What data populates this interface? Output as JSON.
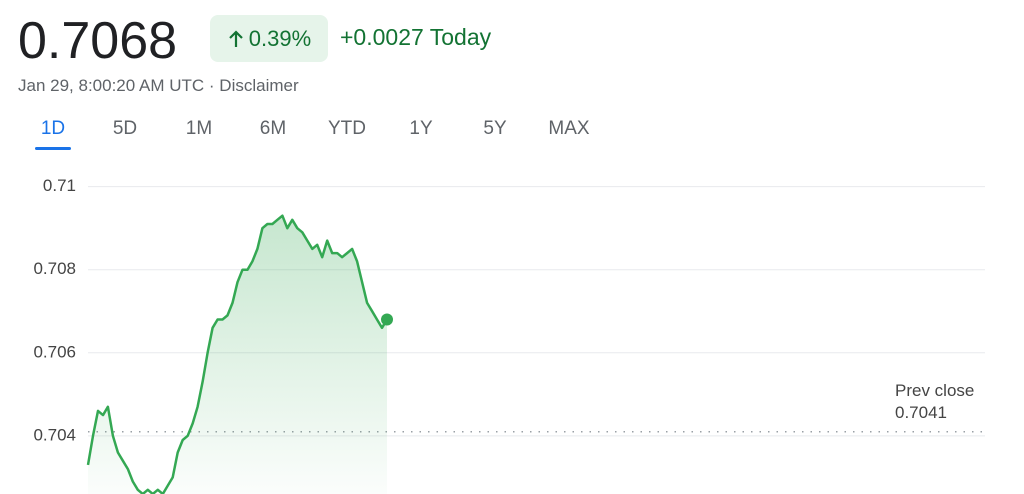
{
  "header": {
    "price": "0.7068",
    "change_percent": "0.39%",
    "change": "+0.0027 Today",
    "timestamp": "Jan 29, 8:00:20 AM UTC",
    "separator": "·",
    "disclaimer": "Disclaimer"
  },
  "tabs": [
    "1D",
    "5D",
    "1M",
    "6M",
    "YTD",
    "1Y",
    "5Y",
    "MAX"
  ],
  "chart_data": {
    "type": "line",
    "color": "#34a853",
    "values": [
      0.7033,
      0.704,
      0.7046,
      0.7045,
      0.7047,
      0.704,
      0.7036,
      0.7034,
      0.7032,
      0.7029,
      0.7027,
      0.7026,
      0.7027,
      0.7026,
      0.7027,
      0.7026,
      0.7028,
      0.703,
      0.7036,
      0.7039,
      0.704,
      0.7043,
      0.7047,
      0.7053,
      0.706,
      0.7066,
      0.7068,
      0.7068,
      0.7069,
      0.7072,
      0.7077,
      0.708,
      0.708,
      0.7082,
      0.7085,
      0.709,
      0.7091,
      0.7091,
      0.7092,
      0.7093,
      0.709,
      0.7092,
      0.709,
      0.7089,
      0.7087,
      0.7085,
      0.7086,
      0.7083,
      0.7087,
      0.7084,
      0.7084,
      0.7083,
      0.7084,
      0.7085,
      0.7082,
      0.7077,
      0.7072,
      0.707,
      0.7068,
      0.7066,
      0.7068
    ],
    "xlim": [
      0,
      180
    ],
    "ylim": [
      0.7026,
      0.7104
    ],
    "yticks": [
      0.704,
      0.706,
      0.708,
      0.71
    ],
    "grid": true,
    "prev_close_label": "Prev close",
    "prev_close": 0.7041
  }
}
